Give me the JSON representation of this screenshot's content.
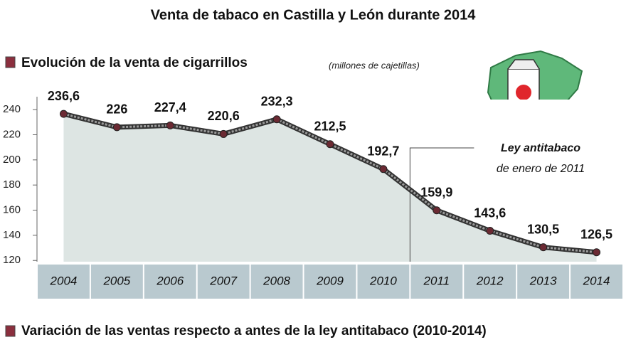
{
  "chart_data": {
    "type": "line",
    "title": "Venta de tabaco en Castilla y León durante 2014",
    "subtitle": "Evolución de la venta de cigarrillos",
    "unit": "(millones de cajetillas)",
    "annotations": [
      "Ley antitabaco",
      "de enero de 2011"
    ],
    "section_title": "Variación de las ventas respecto a antes de la ley antitabaco (2010-2014)",
    "categories": [
      "2004",
      "2005",
      "2006",
      "2007",
      "2008",
      "2009",
      "2010",
      "2011",
      "2012",
      "2013",
      "2014"
    ],
    "values": [
      236.6,
      226,
      227.4,
      220.6,
      232.3,
      212.5,
      192.7,
      159.9,
      143.6,
      130.5,
      126.5
    ],
    "value_labels": [
      "236,6",
      "226",
      "227,4",
      "220,6",
      "232,3",
      "212,5",
      "192,7",
      "159,9",
      "143,6",
      "130,5",
      "126,5"
    ],
    "color": "#5a5a5a",
    "ylim": [
      119,
      248
    ],
    "yticks": [
      120,
      140,
      160,
      180,
      200,
      220,
      240
    ],
    "grid": false
  }
}
